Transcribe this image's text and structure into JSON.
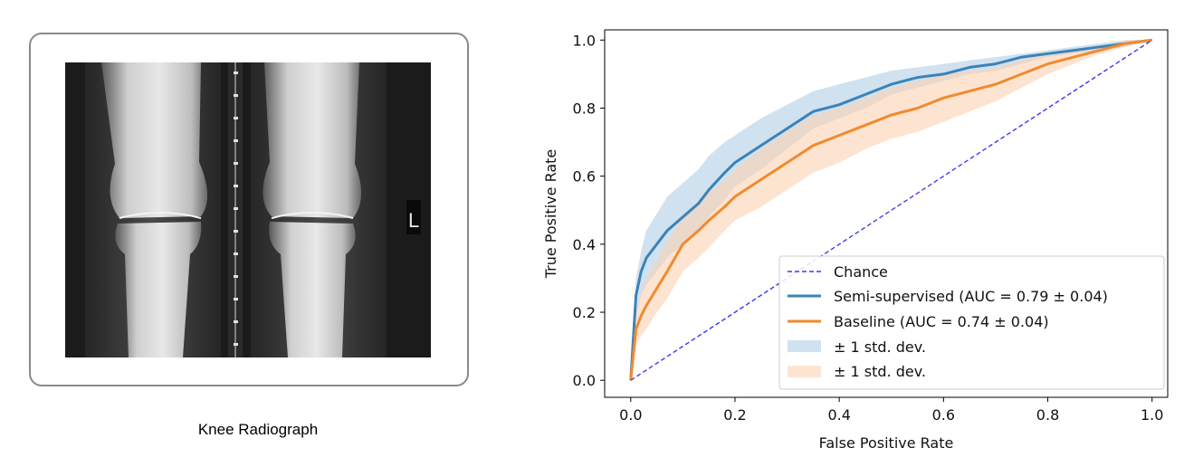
{
  "panel_left": {
    "caption": "Knee Radiograph",
    "marker_letter": "L"
  },
  "chart_data": {
    "type": "line",
    "xlabel": "False Positive Rate",
    "ylabel": "True Positive Rate",
    "xlim": [
      -0.05,
      1.03
    ],
    "ylim": [
      -0.05,
      1.03
    ],
    "xticks": [
      "0.0",
      "0.2",
      "0.4",
      "0.6",
      "0.8",
      "1.0"
    ],
    "yticks": [
      "0.0",
      "0.2",
      "0.4",
      "0.6",
      "0.8",
      "1.0"
    ],
    "grid": false,
    "legend_position": "lower-right",
    "series": [
      {
        "name": "Chance",
        "style": "dashed",
        "color": "#3b3bf0",
        "x": [
          0,
          1
        ],
        "y": [
          0,
          1
        ]
      },
      {
        "name": "Semi-supervised (AUC = 0.79 ± 0.04)",
        "style": "solid",
        "color": "#3a83b9",
        "x": [
          0,
          0.01,
          0.02,
          0.03,
          0.05,
          0.07,
          0.1,
          0.13,
          0.15,
          0.18,
          0.2,
          0.25,
          0.3,
          0.35,
          0.4,
          0.45,
          0.5,
          0.55,
          0.6,
          0.65,
          0.7,
          0.75,
          0.8,
          0.85,
          0.9,
          0.95,
          1.0
        ],
        "y": [
          0,
          0.25,
          0.32,
          0.36,
          0.4,
          0.44,
          0.48,
          0.52,
          0.56,
          0.61,
          0.64,
          0.69,
          0.74,
          0.79,
          0.81,
          0.84,
          0.87,
          0.89,
          0.9,
          0.92,
          0.93,
          0.95,
          0.96,
          0.97,
          0.98,
          0.99,
          1.0
        ]
      },
      {
        "name": "Baseline (AUC = 0.74 ± 0.04)",
        "style": "solid",
        "color": "#f28a2e",
        "x": [
          0,
          0.01,
          0.02,
          0.03,
          0.05,
          0.07,
          0.1,
          0.13,
          0.15,
          0.18,
          0.2,
          0.25,
          0.3,
          0.35,
          0.4,
          0.45,
          0.5,
          0.55,
          0.6,
          0.65,
          0.7,
          0.75,
          0.8,
          0.85,
          0.9,
          0.95,
          1.0
        ],
        "y": [
          0,
          0.15,
          0.19,
          0.22,
          0.27,
          0.32,
          0.4,
          0.44,
          0.47,
          0.51,
          0.54,
          0.59,
          0.64,
          0.69,
          0.72,
          0.75,
          0.78,
          0.8,
          0.83,
          0.85,
          0.87,
          0.9,
          0.93,
          0.95,
          0.97,
          0.99,
          1.0
        ]
      }
    ],
    "bands": [
      {
        "name": "± 1 std. dev.",
        "color": "#a9c9e2",
        "opacity": 0.55,
        "x": [
          0,
          0.01,
          0.02,
          0.03,
          0.05,
          0.07,
          0.1,
          0.13,
          0.15,
          0.18,
          0.2,
          0.25,
          0.3,
          0.35,
          0.4,
          0.45,
          0.5,
          0.55,
          0.6,
          0.65,
          0.7,
          0.75,
          0.8,
          0.85,
          0.9,
          0.95,
          1.0
        ],
        "upper": [
          0,
          0.3,
          0.38,
          0.44,
          0.49,
          0.54,
          0.58,
          0.62,
          0.66,
          0.7,
          0.72,
          0.77,
          0.81,
          0.85,
          0.87,
          0.89,
          0.91,
          0.92,
          0.93,
          0.94,
          0.95,
          0.96,
          0.97,
          0.98,
          0.99,
          1.0,
          1.0
        ],
        "lower": [
          0,
          0.18,
          0.25,
          0.28,
          0.32,
          0.36,
          0.4,
          0.44,
          0.48,
          0.53,
          0.57,
          0.62,
          0.68,
          0.74,
          0.77,
          0.8,
          0.84,
          0.86,
          0.88,
          0.9,
          0.91,
          0.93,
          0.95,
          0.96,
          0.97,
          0.98,
          1.0
        ]
      },
      {
        "name": "± 1 std. dev.",
        "color": "#fbd2b0",
        "opacity": 0.6,
        "x": [
          0,
          0.01,
          0.02,
          0.03,
          0.05,
          0.07,
          0.1,
          0.13,
          0.15,
          0.18,
          0.2,
          0.25,
          0.3,
          0.35,
          0.4,
          0.45,
          0.5,
          0.55,
          0.6,
          0.65,
          0.7,
          0.75,
          0.8,
          0.85,
          0.9,
          0.95,
          1.0
        ],
        "upper": [
          0,
          0.2,
          0.26,
          0.3,
          0.35,
          0.41,
          0.48,
          0.52,
          0.55,
          0.59,
          0.62,
          0.68,
          0.73,
          0.78,
          0.8,
          0.83,
          0.86,
          0.88,
          0.9,
          0.91,
          0.92,
          0.94,
          0.96,
          0.97,
          0.98,
          1.0,
          1.0
        ],
        "lower": [
          0,
          0.1,
          0.13,
          0.15,
          0.2,
          0.24,
          0.32,
          0.36,
          0.39,
          0.44,
          0.47,
          0.51,
          0.56,
          0.61,
          0.64,
          0.68,
          0.71,
          0.73,
          0.76,
          0.79,
          0.82,
          0.86,
          0.9,
          0.93,
          0.96,
          0.98,
          1.0
        ]
      }
    ]
  }
}
